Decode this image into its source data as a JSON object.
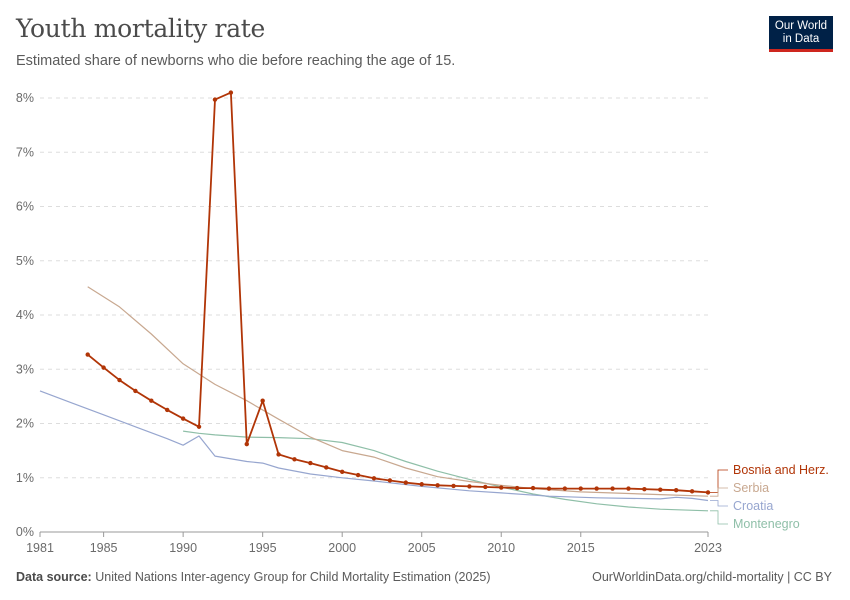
{
  "header": {
    "title": "Youth mortality rate",
    "subtitle": "Estimated share of newborns who die before reaching the age of 15."
  },
  "logo": {
    "line1": "Our World",
    "line2": "in Data"
  },
  "footer": {
    "source_label": "Data source:",
    "source_text": "United Nations Inter-agency Group for Child Mortality Estimation (2025)",
    "url": "OurWorldinData.org/child-mortality | CC BY"
  },
  "colors": {
    "bosnia": "#b13507",
    "serbia": "#c8a890",
    "croatia": "#97a6cf",
    "montenegro": "#8fbfa8",
    "grid": "#dddddd",
    "axis_text": "#6b6b6b"
  },
  "chart_data": {
    "type": "line",
    "ylim": [
      0,
      8
    ],
    "xlim": [
      1981,
      2023
    ],
    "y_ticks": [
      0,
      1,
      2,
      3,
      4,
      5,
      6,
      7,
      8
    ],
    "y_tick_labels": [
      "0%",
      "1%",
      "2%",
      "3%",
      "4%",
      "5%",
      "6%",
      "7%",
      "8%"
    ],
    "x_ticks": [
      1981,
      1985,
      1990,
      1995,
      2000,
      2005,
      2010,
      2015,
      2023
    ],
    "x_tick_labels": [
      "1981",
      "1985",
      "1990",
      "1995",
      "2000",
      "2005",
      "2010",
      "2015",
      "2023"
    ],
    "grid": "horizontal dashed",
    "legend": "right, end of lines",
    "series": [
      {
        "name": "Bosnia and Herz.",
        "key": "bosnia",
        "markers": true,
        "x": [
          1984,
          1985,
          1986,
          1987,
          1988,
          1989,
          1990,
          1991,
          1992,
          1993,
          1994,
          1995,
          1996,
          1997,
          1998,
          1999,
          2000,
          2001,
          2002,
          2003,
          2004,
          2005,
          2006,
          2007,
          2008,
          2009,
          2010,
          2011,
          2012,
          2013,
          2014,
          2015,
          2016,
          2017,
          2018,
          2019,
          2020,
          2021,
          2022,
          2023
        ],
        "y": [
          3.27,
          3.03,
          2.8,
          2.6,
          2.42,
          2.25,
          2.09,
          1.94,
          7.97,
          8.1,
          1.62,
          2.42,
          1.43,
          1.34,
          1.27,
          1.19,
          1.11,
          1.05,
          0.99,
          0.95,
          0.91,
          0.88,
          0.86,
          0.85,
          0.84,
          0.83,
          0.82,
          0.81,
          0.81,
          0.8,
          0.8,
          0.8,
          0.8,
          0.8,
          0.8,
          0.79,
          0.78,
          0.77,
          0.75,
          0.73
        ]
      },
      {
        "name": "Serbia",
        "key": "serbia",
        "markers": false,
        "x": [
          1984,
          1986,
          1988,
          1990,
          1992,
          1994,
          1996,
          1998,
          2000,
          2002,
          2004,
          2006,
          2008,
          2010,
          2012,
          2015,
          2018,
          2020,
          2023
        ],
        "y": [
          4.52,
          4.15,
          3.65,
          3.1,
          2.72,
          2.42,
          2.08,
          1.75,
          1.5,
          1.38,
          1.18,
          1.02,
          0.93,
          0.86,
          0.8,
          0.74,
          0.71,
          0.69,
          0.66
        ]
      },
      {
        "name": "Croatia",
        "key": "croatia",
        "markers": false,
        "x": [
          1981,
          1983,
          1985,
          1987,
          1989,
          1990,
          1991,
          1992,
          1994,
          1995,
          1996,
          1998,
          2000,
          2002,
          2005,
          2008,
          2010,
          2013,
          2016,
          2020,
          2021,
          2022,
          2023
        ],
        "y": [
          2.6,
          2.38,
          2.16,
          1.94,
          1.72,
          1.6,
          1.77,
          1.4,
          1.3,
          1.27,
          1.18,
          1.07,
          1.0,
          0.94,
          0.84,
          0.76,
          0.72,
          0.66,
          0.63,
          0.61,
          0.64,
          0.62,
          0.58
        ]
      },
      {
        "name": "Montenegro",
        "key": "montenegro",
        "markers": false,
        "x": [
          1990,
          1991,
          1992,
          1994,
          1996,
          1998,
          2000,
          2002,
          2004,
          2006,
          2008,
          2010,
          2012,
          2014,
          2016,
          2018,
          2020,
          2023
        ],
        "y": [
          1.86,
          1.82,
          1.79,
          1.75,
          1.74,
          1.72,
          1.65,
          1.5,
          1.3,
          1.12,
          0.97,
          0.83,
          0.7,
          0.6,
          0.52,
          0.46,
          0.42,
          0.39
        ]
      }
    ]
  }
}
